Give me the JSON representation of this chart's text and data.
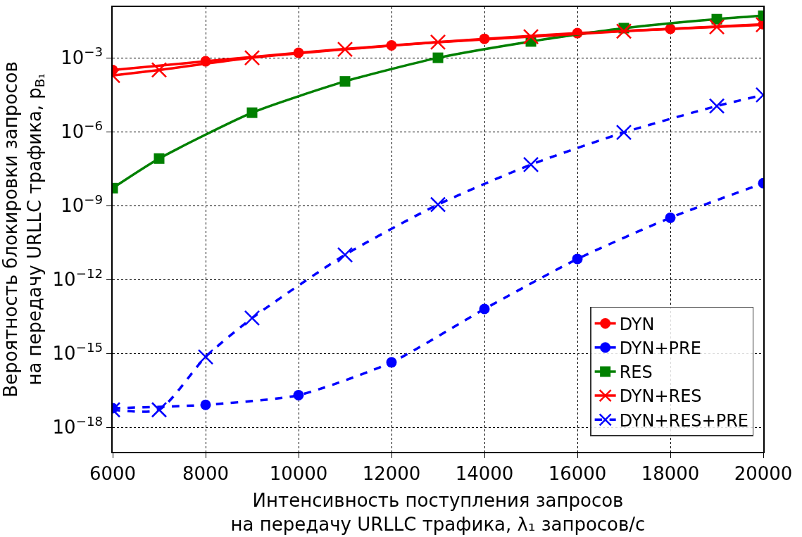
{
  "chart_data": {
    "type": "line",
    "xlabel": "Интенсивность поступления запросов\nна передачу URLLC трафика, λ₁ запросов/с",
    "ylabel": "Вероятность блокировки запросов\nна передачу URLLC трафика, p$_{B₁}$",
    "log": "y",
    "grid": true,
    "legend": "bottom right",
    "xlim": [
      6000,
      20000
    ],
    "xticks": [
      6000,
      8000,
      10000,
      12000,
      14000,
      16000,
      18000,
      20000
    ],
    "ylim": [
      1e-19,
      0.115
    ],
    "yticks": [
      {
        "value": 0.001,
        "label": "10$^{−3}$"
      },
      {
        "value": 1e-06,
        "label": "10$^{−6}$"
      },
      {
        "value": 1e-09,
        "label": "10$^{−9}$"
      },
      {
        "value": 1e-12,
        "label": "10$^{−12}$"
      },
      {
        "value": 1e-15,
        "label": "10$^{−15}$"
      },
      {
        "value": 1e-18,
        "label": "10$^{−18}$"
      }
    ],
    "series": [
      {
        "name": "DYN",
        "color": "#ff0000",
        "marker": "circle",
        "line_style": "solid",
        "x": [
          6000,
          8000,
          10000,
          12000,
          14000,
          16000,
          18000,
          20000
        ],
        "values": [
          0.00032,
          0.00072,
          0.0016,
          0.0032,
          0.0059,
          0.01,
          0.015,
          0.023
        ]
      },
      {
        "name": "DYN+PRE",
        "color": "#0000ff",
        "marker": "circle",
        "line_style": "dashed",
        "x": [
          6000,
          8000,
          10000,
          12000,
          14000,
          16000,
          18000,
          20000
        ],
        "values": [
          5.9e-18,
          8.1e-18,
          2e-17,
          4.3e-16,
          6.3e-14,
          6.8e-12,
          3.2e-10,
          8.1e-09
        ]
      },
      {
        "name": "RES",
        "color": "#008000",
        "marker": "square",
        "line_style": "solid",
        "x": [
          6000,
          7000,
          9000,
          11000,
          13000,
          15000,
          17000,
          19000,
          20000
        ],
        "values": [
          5.1e-09,
          8.1e-08,
          5.9e-06,
          0.00011,
          0.001,
          0.0046,
          0.016,
          0.037,
          0.051
        ]
      },
      {
        "name": "DYN+RES",
        "color": "#ff0000",
        "marker": "cross",
        "line_style": "solid",
        "x": [
          6000,
          7000,
          9000,
          11000,
          13000,
          15000,
          17000,
          19000,
          20000
        ],
        "values": [
          0.00019,
          0.00032,
          0.001,
          0.0022,
          0.0043,
          0.0072,
          0.012,
          0.018,
          0.022
        ]
      },
      {
        "name": "DYN+RES+PRE",
        "color": "#0000ff",
        "marker": "cross",
        "line_style": "dashed",
        "x": [
          6000,
          7000,
          8000,
          9000,
          11000,
          13000,
          15000,
          17000,
          19000,
          20000
        ],
        "values": [
          5.1e-18,
          5.1e-18,
          7.2e-16,
          2.7e-14,
          1e-11,
          1.1e-09,
          4.6e-08,
          9.3e-07,
          1.1e-05,
          3.1e-05
        ]
      }
    ]
  }
}
